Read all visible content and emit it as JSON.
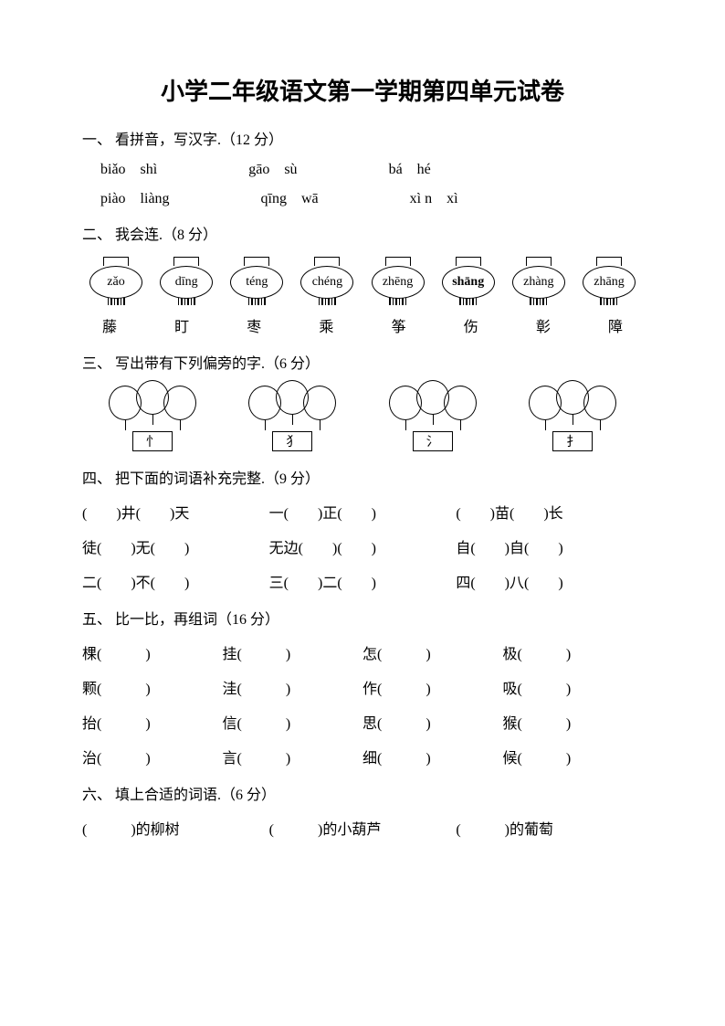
{
  "title": "小学二年级语文第一学期第四单元试卷",
  "colors": {
    "text": "#000000",
    "background": "#ffffff"
  },
  "typography": {
    "title_size": 26,
    "body_size": 16,
    "pinyin_size": 16
  },
  "s1": {
    "heading": "一、 看拼音，写汉字.（12 分）",
    "row1": {
      "a1": "biǎo",
      "a2": "shì",
      "b1": "gāo",
      "b2": "sù",
      "c1": "bá",
      "c2": "hé"
    },
    "row2": {
      "a1": "piào",
      "a2": "liàng",
      "b1": "qīng",
      "b2": "wā",
      "c1": "xì n",
      "c2": "xì"
    }
  },
  "s2": {
    "heading": "二、 我会连.（8 分）",
    "lanterns": [
      "zǎo",
      "dīng",
      "téng",
      "chéng",
      "zhēng",
      "shāng",
      "zhàng",
      "zhāng"
    ],
    "bold_index": 5,
    "chars": [
      "藤",
      "盯",
      "枣",
      "乘",
      "筝",
      "伤",
      "彰",
      "障"
    ]
  },
  "s3": {
    "heading": "三、 写出带有下列偏旁的字.（6 分）",
    "radicals": [
      "忄",
      "犭",
      "氵",
      "扌"
    ]
  },
  "s4": {
    "heading": "四、 把下面的词语补充完整.（9 分）",
    "r1": {
      "a": "(　　)井(　　)天",
      "b": "一(　　)正(　　)",
      "c": "(　　)苗(　　)长"
    },
    "r2": {
      "a": "徒(　　)无(　　)",
      "b": "无边(　　)(　　)",
      "c": "自(　　)自(　　)"
    },
    "r3": {
      "a": "二(　　)不(　　)",
      "b": "三(　　)二(　　)",
      "c": "四(　　)八(　　)"
    }
  },
  "s5": {
    "heading": "五、 比一比，再组词（16 分）",
    "rows": [
      [
        "棵(　　　)",
        "挂(　　　)",
        "怎(　　　)",
        "极(　　　)"
      ],
      [
        "颗(　　　)",
        "洼(　　　)",
        "作(　　　)",
        "吸(　　　)"
      ],
      [
        "抬(　　　)",
        "信(　　　)",
        "思(　　　)",
        "猴(　　　)"
      ],
      [
        "治(　　　)",
        "言(　　　)",
        "细(　　　)",
        "候(　　　)"
      ]
    ]
  },
  "s6": {
    "heading": "六、 填上合适的词语.（6 分）",
    "r1": {
      "a": "(　　　)的柳树",
      "b": "(　　　)的小葫芦",
      "c": "(　　　)的葡萄"
    }
  }
}
